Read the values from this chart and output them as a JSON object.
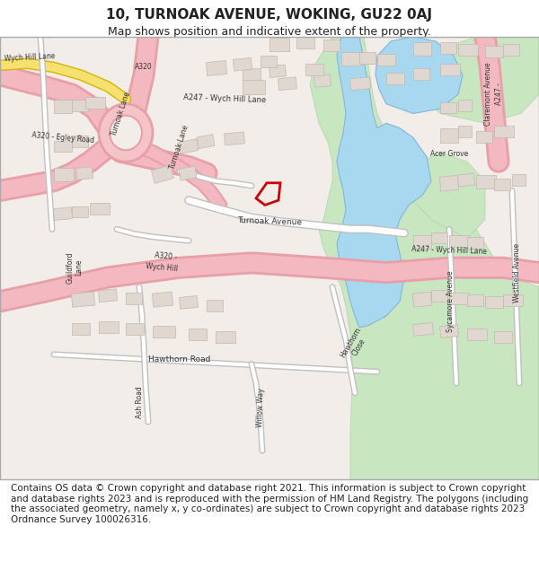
{
  "title_line1": "10, TURNOAK AVENUE, WOKING, GU22 0AJ",
  "title_line2": "Map shows position and indicative extent of the property.",
  "footer": "Contains OS data © Crown copyright and database right 2021. This information is subject to Crown copyright and database rights 2023 and is reproduced with the permission of HM Land Registry. The polygons (including the associated geometry, namely x, y co-ordinates) are subject to Crown copyright and database rights 2023 Ordnance Survey 100026316.",
  "bg_color": "#f8f8f8",
  "map_bg": "#f2ede8",
  "road_major_color": "#f4b8c0",
  "road_major_outline": "#e8a0a8",
  "road_minor_color": "#ffffff",
  "road_outline": "#c0c0c0",
  "building_color": "#e0d8d0",
  "building_outline": "#c0b8b0",
  "green_color": "#c8e6c0",
  "green_outline": "#b0d4a8",
  "water_color": "#a8d8f0",
  "water_dark": "#7fb8d8",
  "property_color": "#cc0000",
  "yellow_road": "#f5e070",
  "yellow_road_outline": "#d4b800",
  "title_fontsize": 11,
  "subtitle_fontsize": 9,
  "footer_fontsize": 7.5,
  "label_fontsize": 6.5,
  "label_small_fontsize": 5.5,
  "label_med_fontsize": 6.0
}
